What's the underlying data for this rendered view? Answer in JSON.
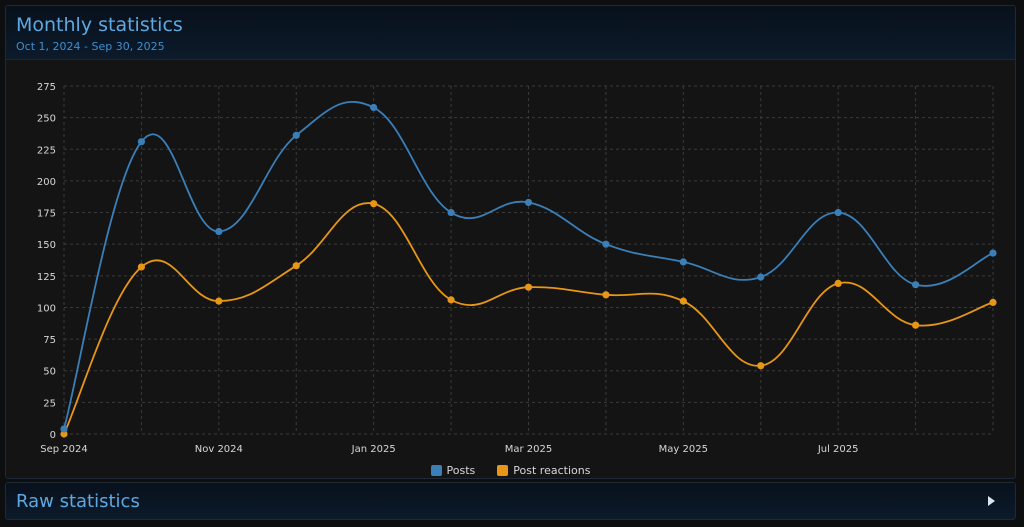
{
  "header": {
    "title": "Monthly statistics",
    "subtitle": "Oct 1, 2024 - Sep 30, 2025"
  },
  "raw_section": {
    "title": "Raw statistics",
    "icon": "chevron-right-icon"
  },
  "colors": {
    "posts": "#3a7fb8",
    "reactions": "#e89616",
    "grid": "#3a3a3a",
    "text": "#d7d7d7"
  },
  "chart_data": {
    "type": "line",
    "title": "Monthly statistics",
    "subtitle": "Oct 1, 2024 - Sep 30, 2025",
    "x": [
      "2024-09",
      "2024-10",
      "2024-11",
      "2024-12",
      "2025-01",
      "2025-02",
      "2025-03",
      "2025-04",
      "2025-05",
      "2025-06",
      "2025-07",
      "2025-08",
      "2025-09"
    ],
    "x_tick_labels": [
      "Sep 2024",
      "Nov 2024",
      "Jan 2025",
      "Mar 2025",
      "May 2025",
      "Jul 2025"
    ],
    "x_tick_positions": [
      "2024-09",
      "2024-11",
      "2025-01",
      "2025-03",
      "2025-05",
      "2025-07"
    ],
    "y_ticks": [
      0,
      25,
      50,
      75,
      100,
      125,
      150,
      175,
      200,
      225,
      250,
      275
    ],
    "ylim": [
      0,
      275
    ],
    "grid": true,
    "legend_position": "bottom",
    "series": [
      {
        "name": "Posts",
        "values": [
          4,
          231,
          160,
          236,
          258,
          175,
          183,
          150,
          136,
          124,
          175,
          118,
          143
        ]
      },
      {
        "name": "Post reactions",
        "values": [
          0,
          132,
          105,
          133,
          182,
          106,
          116,
          110,
          105,
          54,
          119,
          86,
          104
        ]
      }
    ]
  }
}
